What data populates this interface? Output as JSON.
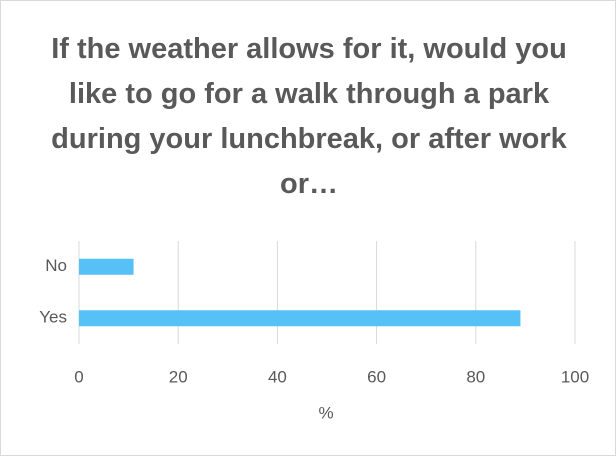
{
  "chart_data": {
    "type": "hbar",
    "title": "If the weather allows for it, would you like to go for a walk through a park during your lunchbreak, or after work or…",
    "categories": [
      "No",
      "Yes"
    ],
    "values": [
      11,
      89
    ],
    "color": "#55c1f7",
    "xlim": [
      0,
      100
    ],
    "xticks": [
      0,
      20,
      40,
      60,
      80,
      100
    ],
    "xlabel": "%",
    "grid": true
  }
}
